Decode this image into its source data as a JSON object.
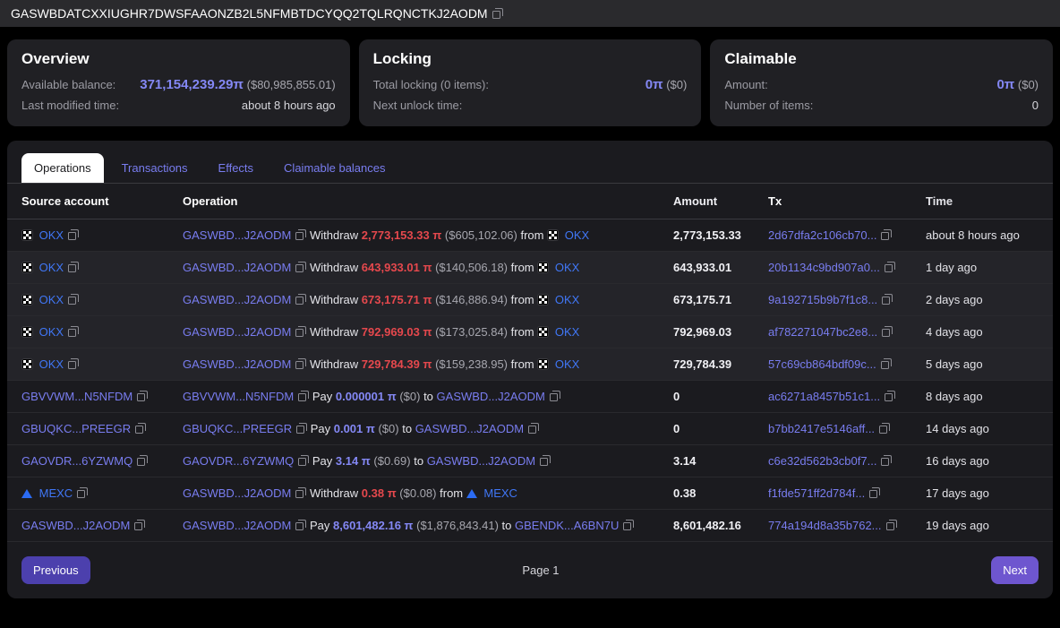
{
  "colors": {
    "background": "#000000",
    "panel": "#1b1b1f",
    "card": "#202024",
    "link_purple": "#797df0",
    "value_purple": "#8488f5",
    "exchange_blue": "#4077f6",
    "withdraw_red": "#e5484d",
    "previous_button": "#4c40ad",
    "next_button": "#6e56cf",
    "active_tab_bg": "#ffffff"
  },
  "header": {
    "address": "GASWBDATCXXIUGHR7DWSFAAONZB2L5NFMBTDCYQQ2TQLRQNCTKJ2AODM"
  },
  "cards": {
    "overview": {
      "title": "Overview",
      "balance_label": "Available balance:",
      "balance_value": "371,154,239.29π",
      "balance_usd": "($80,985,855.01)",
      "modified_label": "Last modified time:",
      "modified_value": "about 8 hours ago"
    },
    "locking": {
      "title": "Locking",
      "total_label": "Total locking (0 items):",
      "total_value": "0π",
      "total_usd": "($0)",
      "unlock_label": "Next unlock time:",
      "unlock_value": ""
    },
    "claimable": {
      "title": "Claimable",
      "amount_label": "Amount:",
      "amount_value": "0π",
      "amount_usd": "($0)",
      "items_label": "Number of items:",
      "items_value": "0"
    }
  },
  "tabs": [
    {
      "label": "Operations",
      "active": true
    },
    {
      "label": "Transactions",
      "active": false
    },
    {
      "label": "Effects",
      "active": false
    },
    {
      "label": "Claimable balances",
      "active": false
    }
  ],
  "table": {
    "columns": [
      "Source account",
      "Operation",
      "Amount",
      "Tx",
      "Time"
    ],
    "rows": [
      {
        "source": "OKX",
        "source_icon": "okx",
        "op_account": "GASWBD...J2AODM",
        "verb": "Withdraw",
        "op_amount": "2,773,153.33 π",
        "op_usd": "($605,102.06)",
        "prep": "from",
        "op_target": "OKX",
        "target_icon": "okx",
        "amount": "2,773,153.33",
        "tx": "2d67dfa2c106cb70...",
        "time": "about 8 hours ago"
      },
      {
        "source": "OKX",
        "source_icon": "okx",
        "op_account": "GASWBD...J2AODM",
        "verb": "Withdraw",
        "op_amount": "643,933.01 π",
        "op_usd": "($140,506.18)",
        "prep": "from",
        "op_target": "OKX",
        "target_icon": "okx",
        "amount": "643,933.01",
        "tx": "20b1134c9bd907a0...",
        "time": "1 day ago"
      },
      {
        "source": "OKX",
        "source_icon": "okx",
        "op_account": "GASWBD...J2AODM",
        "verb": "Withdraw",
        "op_amount": "673,175.71 π",
        "op_usd": "($146,886.94)",
        "prep": "from",
        "op_target": "OKX",
        "target_icon": "okx",
        "amount": "673,175.71",
        "tx": "9a192715b9b7f1c8...",
        "time": "2 days ago"
      },
      {
        "source": "OKX",
        "source_icon": "okx",
        "op_account": "GASWBD...J2AODM",
        "verb": "Withdraw",
        "op_amount": "792,969.03 π",
        "op_usd": "($173,025.84)",
        "prep": "from",
        "op_target": "OKX",
        "target_icon": "okx",
        "amount": "792,969.03",
        "tx": "af782271047bc2e8...",
        "time": "4 days ago"
      },
      {
        "source": "OKX",
        "source_icon": "okx",
        "op_account": "GASWBD...J2AODM",
        "verb": "Withdraw",
        "op_amount": "729,784.39 π",
        "op_usd": "($159,238.95)",
        "prep": "from",
        "op_target": "OKX",
        "target_icon": "okx",
        "amount": "729,784.39",
        "tx": "57c69cb864bdf09c...",
        "time": "5 days ago"
      },
      {
        "source": "GBVVWM...N5NFDM",
        "source_icon": null,
        "op_account": "GBVVWM...N5NFDM",
        "verb": "Pay",
        "op_amount": "0.000001 π",
        "op_usd": "($0)",
        "prep": "to",
        "op_target": "GASWBD...J2AODM",
        "target_icon": null,
        "amount": "0",
        "tx": "ac6271a8457b51c1...",
        "time": "8 days ago"
      },
      {
        "source": "GBUQKC...PREEGR",
        "source_icon": null,
        "op_account": "GBUQKC...PREEGR",
        "verb": "Pay",
        "op_amount": "0.001 π",
        "op_usd": "($0)",
        "prep": "to",
        "op_target": "GASWBD...J2AODM",
        "target_icon": null,
        "amount": "0",
        "tx": "b7bb2417e5146aff...",
        "time": "14 days ago"
      },
      {
        "source": "GAOVDR...6YZWMQ",
        "source_icon": null,
        "op_account": "GAOVDR...6YZWMQ",
        "verb": "Pay",
        "op_amount": "3.14 π",
        "op_usd": "($0.69)",
        "prep": "to",
        "op_target": "GASWBD...J2AODM",
        "target_icon": null,
        "amount": "3.14",
        "tx": "c6e32d562b3cb0f7...",
        "time": "16 days ago"
      },
      {
        "source": "MEXC",
        "source_icon": "mexc",
        "op_account": "GASWBD...J2AODM",
        "verb": "Withdraw",
        "op_amount": "0.38 π",
        "op_usd": "($0.08)",
        "prep": "from",
        "op_target": "MEXC",
        "target_icon": "mexc",
        "amount": "0.38",
        "tx": "f1fde571ff2d784f...",
        "time": "17 days ago"
      },
      {
        "source": "GASWBD...J2AODM",
        "source_icon": null,
        "op_account": "GASWBD...J2AODM",
        "verb": "Pay",
        "op_amount": "8,601,482.16 π",
        "op_usd": "($1,876,843.41)",
        "prep": "to",
        "op_target": "GBENDK...A6BN7U",
        "target_icon": null,
        "amount": "8,601,482.16",
        "tx": "774a194d8a35b762...",
        "time": "19 days ago"
      }
    ]
  },
  "pagination": {
    "previous": "Previous",
    "page": "Page 1",
    "next": "Next"
  }
}
